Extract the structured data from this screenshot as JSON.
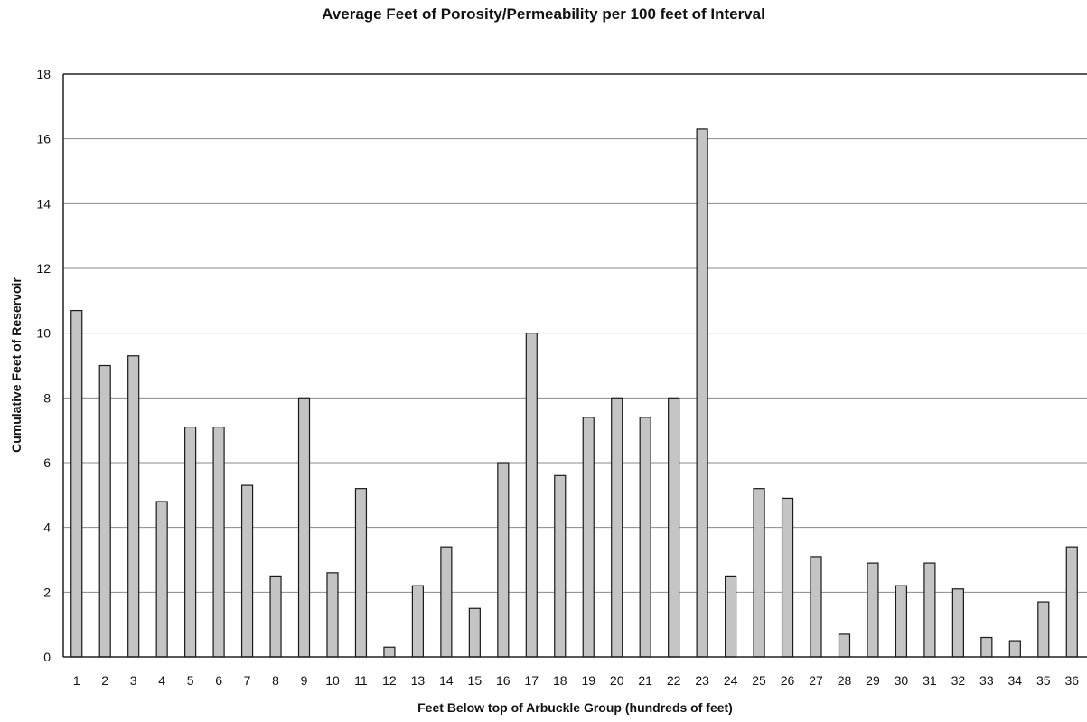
{
  "chart_data": {
    "type": "bar",
    "title": "Average Feet of Porosity/Permeability per 100 feet of Interval",
    "xlabel": "Feet Below top of Arbuckle Group (hundreds of feet)",
    "ylabel": "Cumulative Feet of Reservoir",
    "categories": [
      "1",
      "2",
      "3",
      "4",
      "5",
      "6",
      "7",
      "8",
      "9",
      "10",
      "11",
      "12",
      "13",
      "14",
      "15",
      "16",
      "17",
      "18",
      "19",
      "20",
      "21",
      "22",
      "23",
      "24",
      "25",
      "26",
      "27",
      "28",
      "29",
      "30",
      "31",
      "32",
      "33",
      "34",
      "35",
      "36"
    ],
    "values": [
      10.7,
      9.0,
      9.3,
      4.8,
      7.1,
      7.1,
      5.3,
      2.5,
      8.0,
      2.6,
      5.2,
      0.3,
      2.2,
      3.4,
      1.5,
      6.0,
      10.0,
      5.6,
      7.4,
      8.0,
      7.4,
      8.0,
      16.3,
      2.5,
      5.2,
      4.9,
      3.1,
      0.7,
      2.9,
      2.2,
      2.9,
      2.1,
      0.6,
      0.5,
      1.7,
      3.4
    ],
    "ylim": [
      0,
      18
    ],
    "yticks": [
      0,
      2,
      4,
      6,
      8,
      10,
      12,
      14,
      16,
      18
    ],
    "grid": true,
    "legend": "none",
    "colors": {
      "bar_fill": "#c4c4c4",
      "bar_stroke": "#1a1a1a",
      "grid": "#8a8a8a"
    }
  }
}
